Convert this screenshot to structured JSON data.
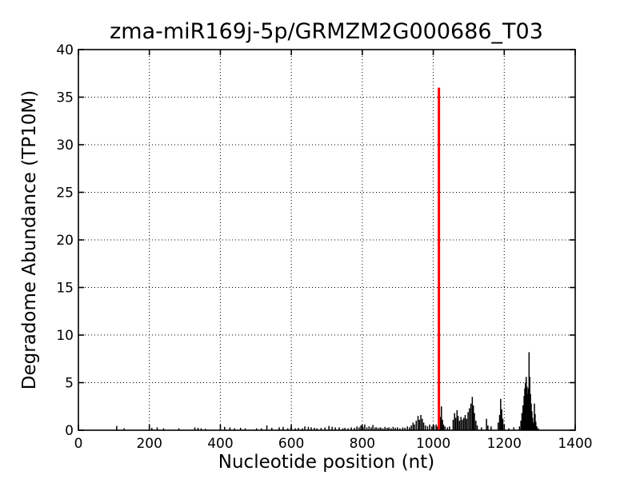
{
  "chart_data": {
    "type": "bar",
    "title": "zma-miR169j-5p/GRMZM2G000686_T03",
    "xlabel": "Nucleotide position (nt)",
    "ylabel": "Degradome Abundance (TP10M)",
    "xlim": [
      0,
      1400
    ],
    "ylim": [
      0,
      40
    ],
    "xticks": [
      0,
      200,
      400,
      600,
      800,
      1000,
      1200,
      1400
    ],
    "yticks": [
      0,
      5,
      10,
      15,
      20,
      25,
      30,
      35,
      40
    ],
    "grid": true,
    "grid_style": "dotted",
    "legend": "none",
    "colors": {
      "spikes": "#000000",
      "highlight": "#ff0000",
      "axis": "#000000",
      "background": "#ffffff"
    },
    "highlight_peak": {
      "x": 1016,
      "value": 36
    },
    "black_spikes": [
      [
        108,
        0.45
      ],
      [
        129,
        0.2
      ],
      [
        207,
        0.25
      ],
      [
        222,
        0.3
      ],
      [
        240,
        0.2
      ],
      [
        283,
        0.2
      ],
      [
        328,
        0.3
      ],
      [
        337,
        0.25
      ],
      [
        346,
        0.2
      ],
      [
        358,
        0.15
      ],
      [
        412,
        0.35
      ],
      [
        427,
        0.3
      ],
      [
        440,
        0.2
      ],
      [
        457,
        0.25
      ],
      [
        470,
        0.2
      ],
      [
        502,
        0.2
      ],
      [
        516,
        0.2
      ],
      [
        531,
        0.5
      ],
      [
        545,
        0.25
      ],
      [
        566,
        0.3
      ],
      [
        577,
        0.35
      ],
      [
        590,
        0.2
      ],
      [
        599,
        0.3
      ],
      [
        611,
        0.2
      ],
      [
        620,
        0.25
      ],
      [
        631,
        0.2
      ],
      [
        638,
        0.4
      ],
      [
        648,
        0.35
      ],
      [
        656,
        0.3
      ],
      [
        665,
        0.25
      ],
      [
        672,
        0.2
      ],
      [
        684,
        0.25
      ],
      [
        695,
        0.3
      ],
      [
        706,
        0.45
      ],
      [
        715,
        0.35
      ],
      [
        724,
        0.3
      ],
      [
        735,
        0.3
      ],
      [
        745,
        0.2
      ],
      [
        751,
        0.25
      ],
      [
        760,
        0.2
      ],
      [
        769,
        0.3
      ],
      [
        778,
        0.25
      ],
      [
        785,
        0.4
      ],
      [
        791,
        0.3
      ],
      [
        796,
        0.5
      ],
      [
        802,
        0.35
      ],
      [
        807,
        0.6
      ],
      [
        813,
        0.3
      ],
      [
        819,
        0.4
      ],
      [
        825,
        0.3
      ],
      [
        830,
        0.55
      ],
      [
        836,
        0.3
      ],
      [
        841,
        0.3
      ],
      [
        847,
        0.25
      ],
      [
        852,
        0.3
      ],
      [
        858,
        0.2
      ],
      [
        864,
        0.35
      ],
      [
        870,
        0.25
      ],
      [
        875,
        0.3
      ],
      [
        881,
        0.2
      ],
      [
        887,
        0.35
      ],
      [
        893,
        0.25
      ],
      [
        899,
        0.3
      ],
      [
        906,
        0.2
      ],
      [
        914,
        0.3
      ],
      [
        920,
        0.25
      ],
      [
        927,
        0.4
      ],
      [
        933,
        0.3
      ],
      [
        938,
        0.5
      ],
      [
        943,
        0.8
      ],
      [
        947,
        0.6
      ],
      [
        952,
        1.0
      ],
      [
        957,
        1.5
      ],
      [
        961,
        1.1
      ],
      [
        965,
        1.6
      ],
      [
        969,
        1.2
      ],
      [
        973,
        0.8
      ],
      [
        978,
        0.5
      ],
      [
        984,
        0.4
      ],
      [
        990,
        0.6
      ],
      [
        996,
        0.4
      ],
      [
        1002,
        0.5
      ],
      [
        1008,
        0.6
      ],
      [
        1012,
        0.4
      ],
      [
        1020,
        1.4
      ],
      [
        1023,
        2.5
      ],
      [
        1026,
        1.1
      ],
      [
        1029,
        0.6
      ],
      [
        1033,
        0.4
      ],
      [
        1040,
        0.3
      ],
      [
        1046,
        0.4
      ],
      [
        1056,
        1.1
      ],
      [
        1060,
        1.8
      ],
      [
        1063,
        1.3
      ],
      [
        1067,
        2.1
      ],
      [
        1070,
        1.5
      ],
      [
        1074,
        1.0
      ],
      [
        1078,
        1.4
      ],
      [
        1082,
        1.1
      ],
      [
        1086,
        1.3
      ],
      [
        1090,
        1.6
      ],
      [
        1094,
        1.2
      ],
      [
        1098,
        1.9
      ],
      [
        1102,
        2.3
      ],
      [
        1106,
        2.8
      ],
      [
        1110,
        3.5
      ],
      [
        1113,
        2.6
      ],
      [
        1116,
        1.8
      ],
      [
        1120,
        1.0
      ],
      [
        1124,
        0.5
      ],
      [
        1136,
        0.3
      ],
      [
        1150,
        1.2
      ],
      [
        1154,
        0.5
      ],
      [
        1163,
        0.4
      ],
      [
        1183,
        0.8
      ],
      [
        1187,
        1.6
      ],
      [
        1190,
        3.3
      ],
      [
        1193,
        2.2
      ],
      [
        1196,
        1.2
      ],
      [
        1200,
        0.5
      ],
      [
        1213,
        0.2
      ],
      [
        1227,
        0.3
      ],
      [
        1243,
        0.4
      ],
      [
        1247,
        1.0
      ],
      [
        1250,
        1.8
      ],
      [
        1253,
        2.6
      ],
      [
        1256,
        3.6
      ],
      [
        1258,
        4.4
      ],
      [
        1260,
        5.0
      ],
      [
        1262,
        5.6
      ],
      [
        1264,
        4.6
      ],
      [
        1266,
        3.8
      ],
      [
        1268,
        4.4
      ],
      [
        1270,
        8.2
      ],
      [
        1272,
        5.6
      ],
      [
        1274,
        3.8
      ],
      [
        1276,
        2.8
      ],
      [
        1278,
        2.0
      ],
      [
        1280,
        1.3
      ],
      [
        1283,
        0.8
      ],
      [
        1285,
        2.8
      ],
      [
        1287,
        1.7
      ],
      [
        1289,
        0.9
      ],
      [
        1292,
        0.4
      ],
      [
        1296,
        0.2
      ]
    ]
  }
}
